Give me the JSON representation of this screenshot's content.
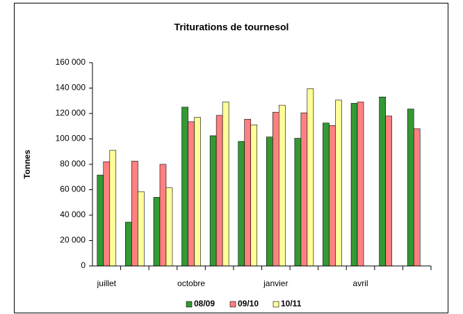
{
  "chart_data": {
    "type": "bar",
    "title": "Triturations de tournesol",
    "y_label": "Tonnes",
    "categories": [
      "juillet",
      null,
      null,
      "octobre",
      null,
      null,
      "janvier",
      null,
      null,
      "avril",
      null,
      null
    ],
    "series": [
      {
        "name": "08/09",
        "color": "#339933",
        "values": [
          71500,
          34500,
          54000,
          125000,
          102500,
          98000,
          101500,
          100500,
          112500,
          128000,
          133000,
          123500
        ]
      },
      {
        "name": "09/10",
        "color": "#ff8080",
        "values": [
          82000,
          82500,
          80000,
          113500,
          118500,
          115500,
          121000,
          120500,
          110500,
          129000,
          118000,
          108000
        ]
      },
      {
        "name": "10/11",
        "color": "#ffff99",
        "values": [
          91000,
          58500,
          61500,
          117000,
          129000,
          111000,
          126500,
          139500,
          130500,
          null,
          null,
          null
        ]
      }
    ],
    "ylim": [
      0,
      160000
    ],
    "yticks": [
      0,
      {
        "value": 20000,
        "label": "20 000"
      },
      {
        "value": 40000,
        "label": "40 000"
      },
      {
        "value": 60000,
        "label": "60 000"
      },
      {
        "value": 80000,
        "label": "80 000"
      },
      {
        "value": 100000,
        "label": "100 000"
      },
      {
        "value": 120000,
        "label": "120 000"
      },
      {
        "value": 140000,
        "label": "140 000"
      },
      {
        "value": 160000,
        "label": "160 000"
      }
    ],
    "grid": false,
    "legend": "bottom"
  }
}
